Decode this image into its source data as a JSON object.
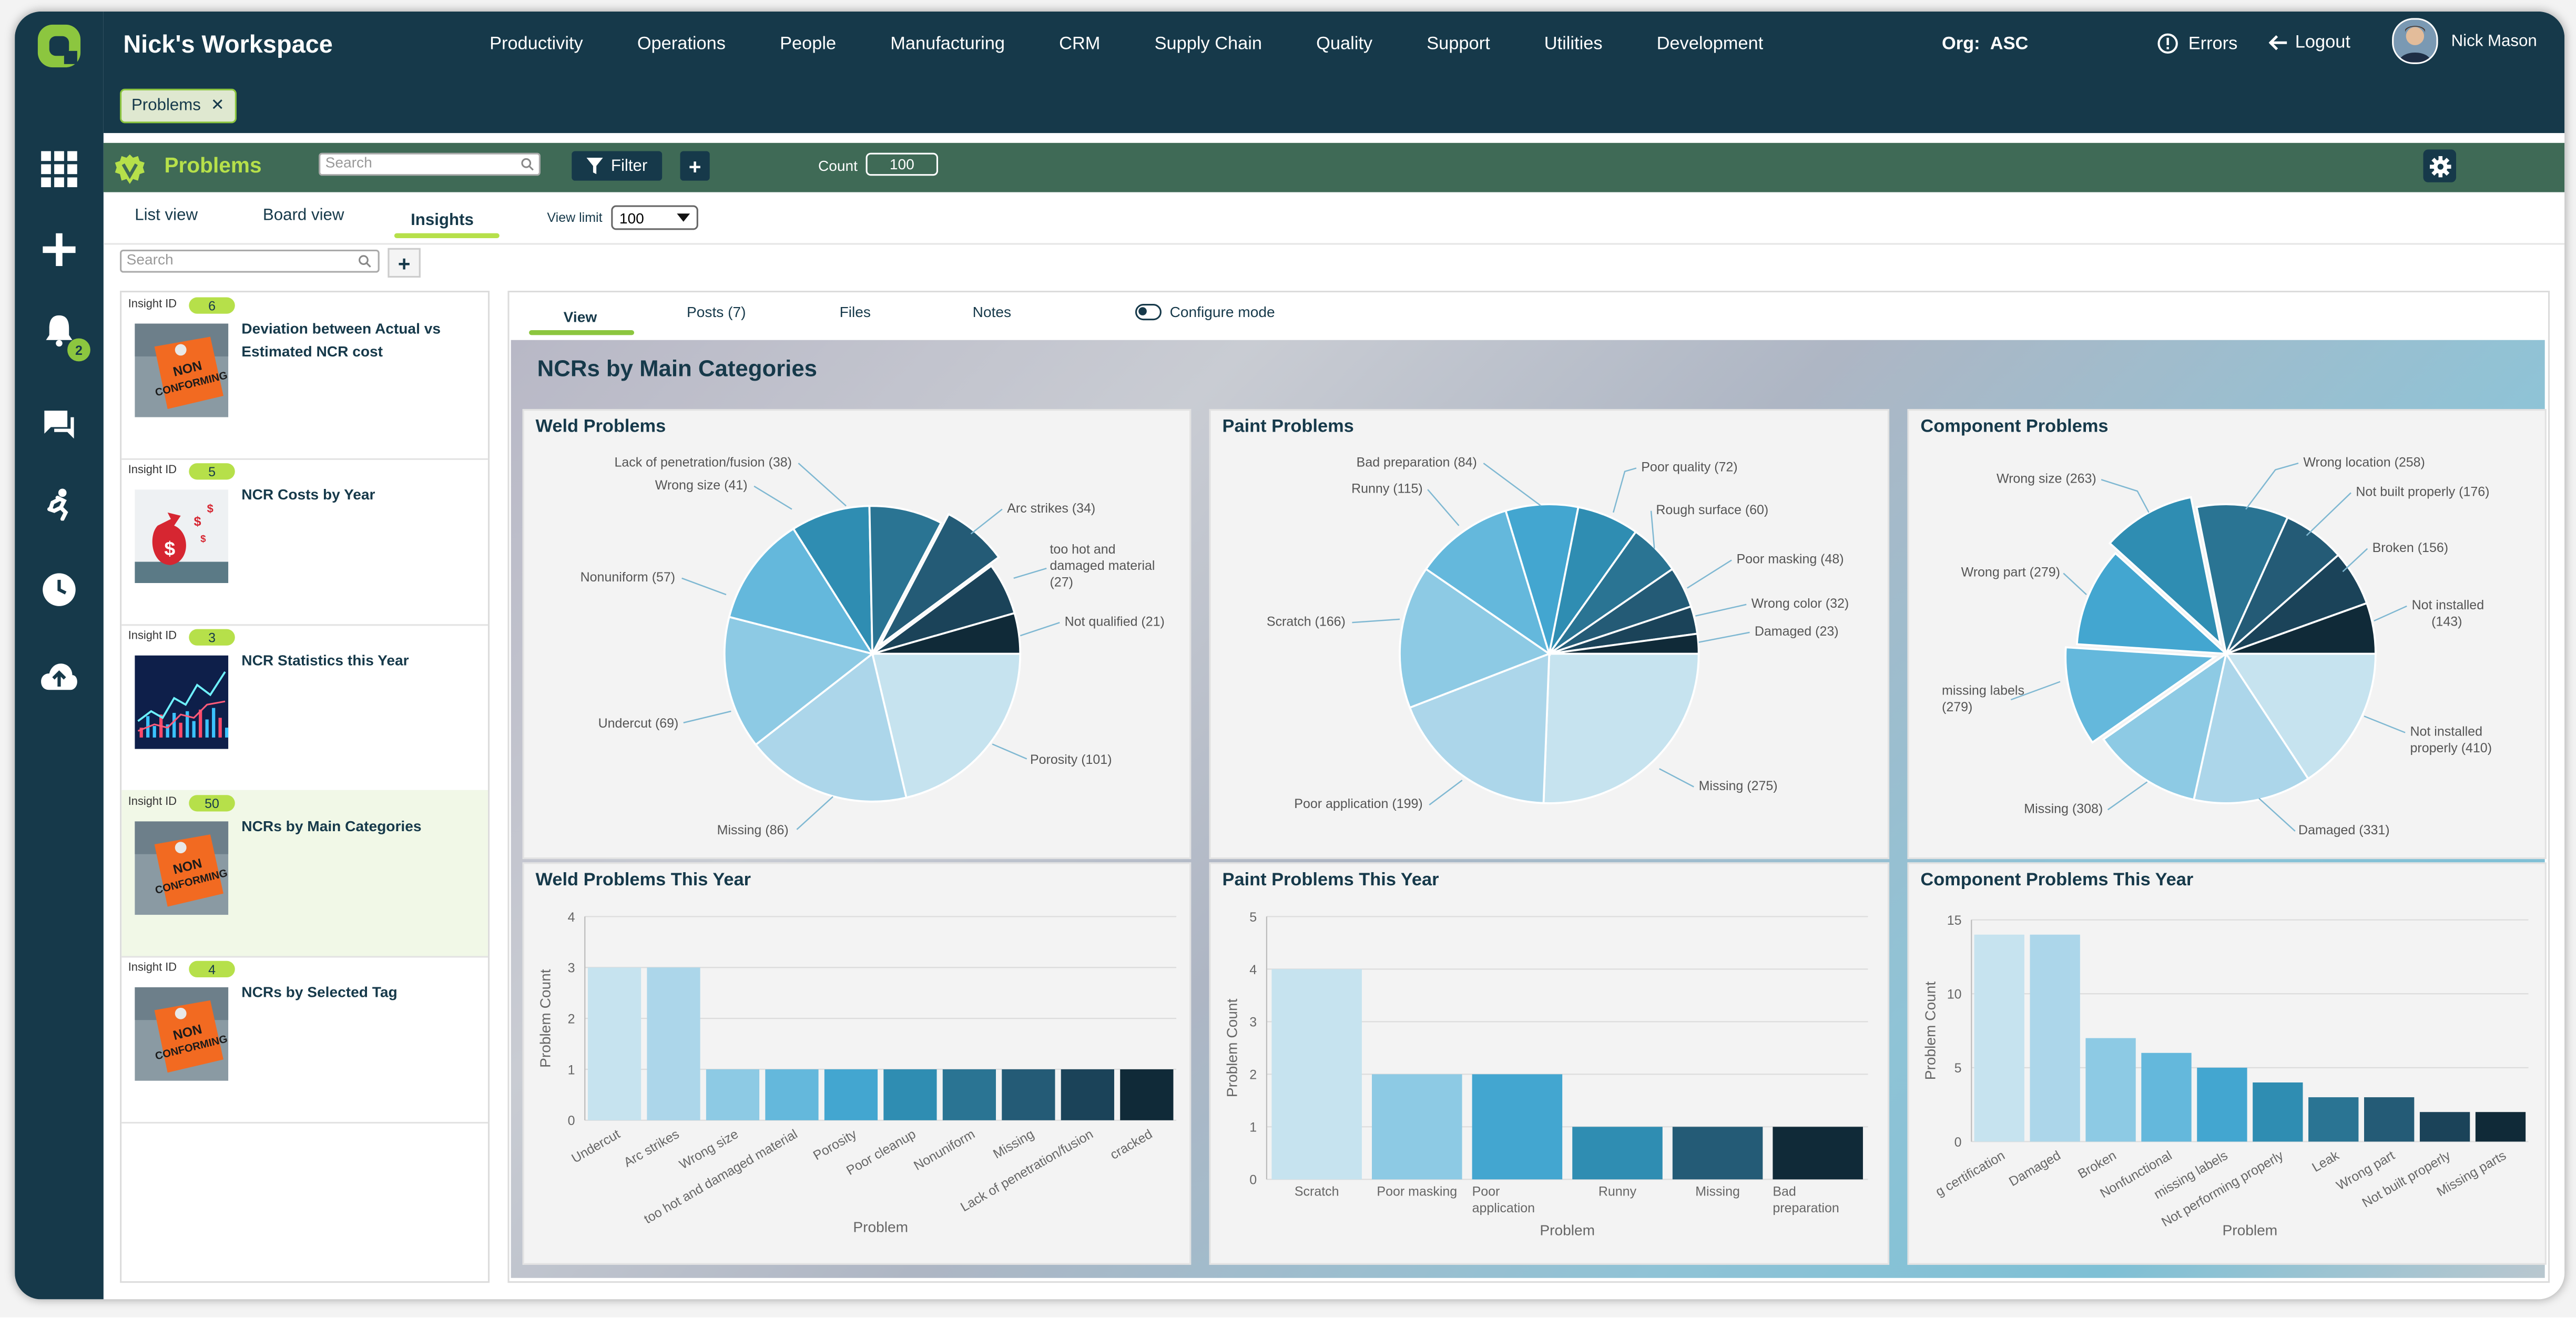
{
  "workspace": {
    "title": "Nick's Workspace"
  },
  "nav": [
    "Productivity",
    "Operations",
    "People",
    "Manufacturing",
    "CRM",
    "Supply Chain",
    "Quality",
    "Support",
    "Utilities",
    "Development"
  ],
  "org": {
    "label": "Org:",
    "value": "ASC"
  },
  "header": {
    "errors": "Errors",
    "logout": "Logout",
    "user": "Nick Mason"
  },
  "open_tab": {
    "label": "Problems"
  },
  "rail": {
    "notification_count": "2"
  },
  "module": {
    "title": "Problems",
    "search_placeholder": "Search",
    "filter_label": "Filter",
    "count_label": "Count",
    "count_value": "100"
  },
  "view_tabs": [
    "List view",
    "Board view",
    "Insights"
  ],
  "view_limit": {
    "label": "View limit",
    "value": "100"
  },
  "list_search_placeholder": "Search",
  "insights": [
    {
      "id_label": "Insight ID",
      "id": "6",
      "title": "Deviation between Actual vs Estimated NCR cost",
      "thumb": "nonconforming"
    },
    {
      "id_label": "Insight ID",
      "id": "5",
      "title": "NCR Costs by Year",
      "thumb": "money"
    },
    {
      "id_label": "Insight ID",
      "id": "3",
      "title": "NCR Statistics this Year",
      "thumb": "stocks"
    },
    {
      "id_label": "Insight ID",
      "id": "50",
      "title": "NCRs by Main Categories",
      "thumb": "nonconforming"
    },
    {
      "id_label": "Insight ID",
      "id": "4",
      "title": "NCRs by Selected Tag",
      "thumb": "nonconforming"
    }
  ],
  "detail_tabs": [
    "View",
    "Posts (7)",
    "Files",
    "Notes"
  ],
  "configure_mode": "Configure mode",
  "dashboard": {
    "title": "NCRs by Main Categories"
  },
  "thumb_text": {
    "line1": "NON",
    "line2": "CONFORMING"
  },
  "chart_data": [
    {
      "type": "pie",
      "title": "Weld Problems",
      "slices": [
        {
          "label": "Porosity",
          "value": 101
        },
        {
          "label": "Missing",
          "value": 86
        },
        {
          "label": "Undercut",
          "value": 69
        },
        {
          "label": "Nonuniform",
          "value": 57
        },
        {
          "label": "Wrong size",
          "value": 41
        },
        {
          "label": "Lack of penetration/fusion",
          "value": 38
        },
        {
          "label": "Arc strikes",
          "value": 34
        },
        {
          "label": "too hot and damaged material",
          "value": 27
        },
        {
          "label": "Not qualified",
          "value": 21
        }
      ],
      "display_labels": [
        "Porosity (101)",
        "Missing (86)",
        "Undercut (69)",
        "Nonuniform (57)",
        "Wrong size (41)",
        "Lack of penetration/fusion (38)",
        "Arc strikes (34)",
        "too hot and",
        "damaged material",
        "(27)",
        "Not qualified (21)"
      ],
      "exploded": [
        "Arc strikes"
      ]
    },
    {
      "type": "pie",
      "title": "Paint Problems",
      "slices": [
        {
          "label": "Missing",
          "value": 275
        },
        {
          "label": "Poor application",
          "value": 199
        },
        {
          "label": "Scratch",
          "value": 166
        },
        {
          "label": "Runny",
          "value": 115
        },
        {
          "label": "Bad preparation",
          "value": 84
        },
        {
          "label": "Poor quality",
          "value": 72
        },
        {
          "label": "Rough surface",
          "value": 60
        },
        {
          "label": "Poor masking",
          "value": 48
        },
        {
          "label": "Wrong color",
          "value": 32
        },
        {
          "label": "Damaged",
          "value": 23
        }
      ],
      "display_labels": [
        "Missing (275)",
        "Poor application (199)",
        "Scratch (166)",
        "Runny (115)",
        "Bad preparation (84)",
        "Poor quality (72)",
        "Rough surface (60)",
        "Poor masking (48)",
        "Wrong color (32)",
        "Damaged (23)"
      ]
    },
    {
      "type": "pie",
      "title": "Component Problems",
      "slices": [
        {
          "label": "Not installed properly",
          "value": 410
        },
        {
          "label": "Damaged",
          "value": 331
        },
        {
          "label": "Missing",
          "value": 308
        },
        {
          "label": "missing labels",
          "value": 279
        },
        {
          "label": "Wrong part",
          "value": 279
        },
        {
          "label": "Wrong size",
          "value": 263
        },
        {
          "label": "Wrong location",
          "value": 258
        },
        {
          "label": "Not built properly",
          "value": 176
        },
        {
          "label": "Broken",
          "value": 156
        },
        {
          "label": "Not installed",
          "value": 143
        }
      ],
      "display_labels": [
        "Not installed",
        "properly (410)",
        "Damaged (331)",
        "Missing (308)",
        "missing labels",
        "(279)",
        "Wrong part (279)",
        "Wrong size (263)",
        "Wrong location (258)",
        "Not built properly (176)",
        "Broken (156)",
        "Not installed",
        "(143)"
      ],
      "exploded": [
        "missing labels",
        "Wrong size"
      ]
    },
    {
      "type": "bar",
      "title": "Weld Problems This Year",
      "categories": [
        "Undercut",
        "Arc strikes",
        "Wrong size",
        "too hot and damaged material",
        "Porosity",
        "Poor cleanup",
        "Nonuniform",
        "Missing",
        "Lack of penetration/fusion",
        "cracked"
      ],
      "values": [
        3,
        3,
        1,
        1,
        1,
        1,
        1,
        1,
        1,
        1
      ],
      "ylim": [
        0,
        4
      ],
      "yticks": [
        "0",
        "1",
        "2",
        "3",
        "4"
      ],
      "xlabel": "Problem",
      "ylabel": "Problem Count"
    },
    {
      "type": "bar",
      "title": "Paint Problems This Year",
      "categories": [
        "Scratch",
        "Poor masking",
        "Poor application",
        "Runny",
        "Missing",
        "Bad preparation"
      ],
      "category_lines": [
        [
          "Scratch"
        ],
        [
          "Poor masking"
        ],
        [
          "Poor",
          "application"
        ],
        [
          "Runny"
        ],
        [
          "Missing"
        ],
        [
          "Bad",
          "preparation"
        ]
      ],
      "values": [
        4,
        2,
        2,
        1,
        1,
        1
      ],
      "ylim": [
        0,
        5
      ],
      "yticks": [
        "0",
        "1",
        "2",
        "3",
        "4",
        "5"
      ],
      "xlabel": "Problem",
      "ylabel": "Problem Count"
    },
    {
      "type": "bar",
      "title": "Component Problems This Year",
      "categories": [
        "g certification",
        "Damaged",
        "Broken",
        "Nonfunctional",
        "missing labels",
        "Not performing properly",
        "Leak",
        "Wrong part",
        "Not built properly",
        "Missing parts"
      ],
      "values": [
        14,
        14,
        7,
        6,
        5,
        4,
        3,
        3,
        2,
        2
      ],
      "ylim": [
        0,
        15
      ],
      "yticks": [
        "0",
        "5",
        "10",
        "15"
      ],
      "xlabel": "Problem",
      "ylabel": "Problem Count"
    }
  ]
}
